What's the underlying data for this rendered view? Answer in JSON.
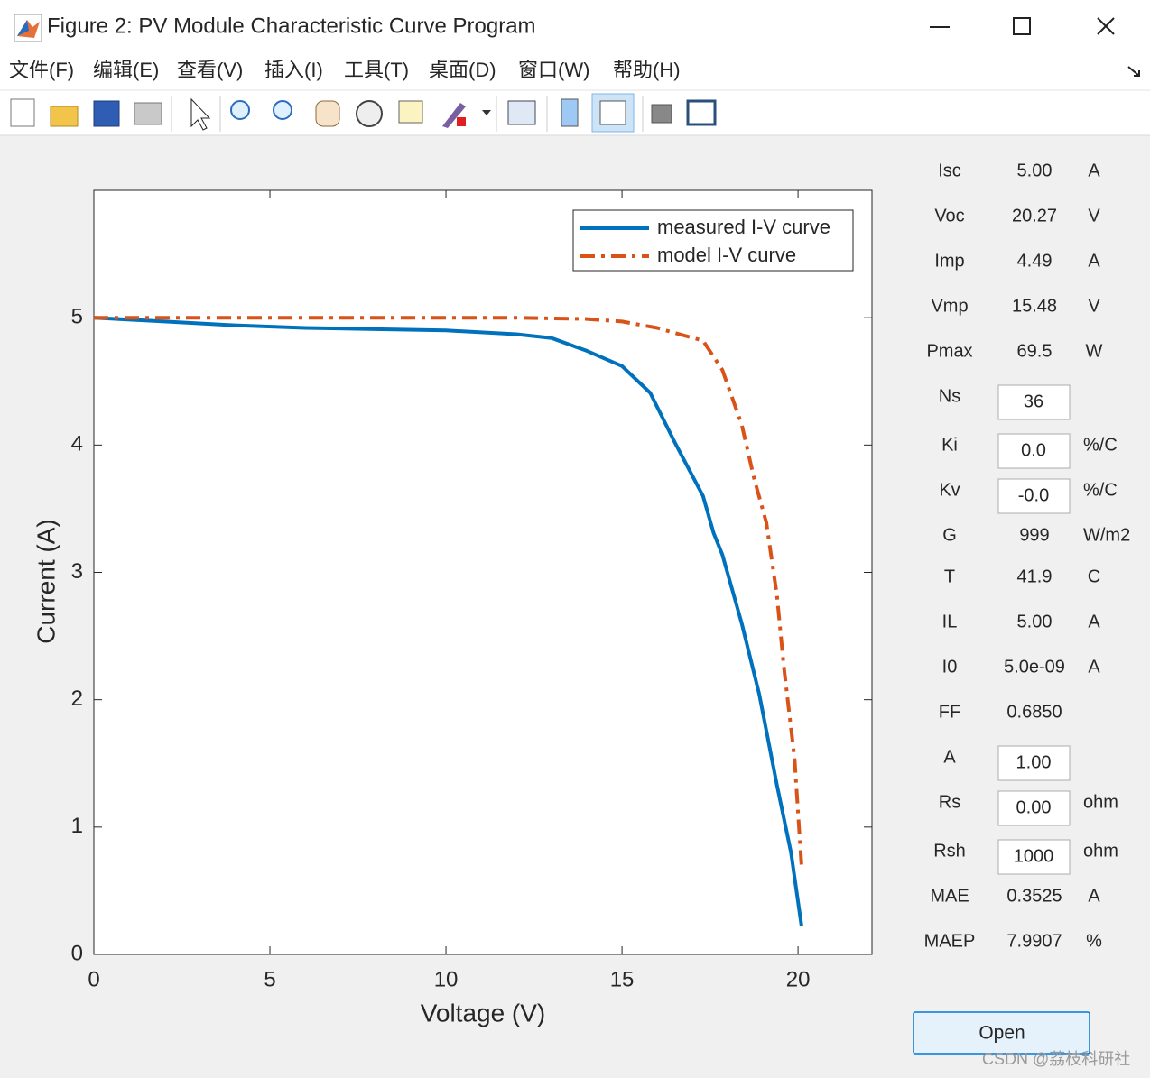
{
  "window": {
    "title": "Figure 2: PV Module Characteristic Curve Program"
  },
  "menu": [
    "文件(F)",
    "编辑(E)",
    "查看(V)",
    "插入(I)",
    "工具(T)",
    "桌面(D)",
    "窗口(W)",
    "帮助(H)"
  ],
  "chart_data": {
    "type": "line",
    "xlabel": "Voltage (V)",
    "ylabel": "Current (A)",
    "xlim": [
      0,
      22.1
    ],
    "ylim": [
      0,
      6
    ],
    "xticks": [
      0,
      5,
      10,
      15,
      20
    ],
    "yticks": [
      0,
      1,
      2,
      3,
      4,
      5
    ],
    "legend": "upper right",
    "series": [
      {
        "name": "measured I-V curve",
        "color": "#0072bd",
        "linestyle": "solid",
        "x": [
          0,
          2,
          4,
          6,
          8,
          10,
          12,
          13,
          14,
          15,
          15.8,
          16.5,
          17.3,
          17.6,
          17.85,
          18.4,
          18.9,
          19.4,
          19.8,
          20.1
        ],
        "values": [
          5.0,
          4.97,
          4.94,
          4.92,
          4.91,
          4.9,
          4.87,
          4.84,
          4.74,
          4.62,
          4.41,
          4.02,
          3.6,
          3.31,
          3.14,
          2.6,
          2.04,
          1.33,
          0.8,
          0.22
        ]
      },
      {
        "name": "model I-V curve",
        "color": "#d95319",
        "linestyle": "dashdot",
        "x": [
          0,
          4,
          8,
          12,
          14,
          15,
          16,
          16.5,
          17.3,
          17.85,
          18.4,
          18.75,
          19.1,
          19.4,
          19.6,
          19.9,
          20.1
        ],
        "values": [
          5.0,
          5.0,
          5.0,
          5.0,
          4.99,
          4.97,
          4.92,
          4.88,
          4.82,
          4.59,
          4.16,
          3.74,
          3.39,
          2.82,
          2.25,
          1.54,
          0.69
        ]
      }
    ]
  },
  "params": [
    {
      "label": "Isc",
      "value": "5.00",
      "unit": "A"
    },
    {
      "label": "Voc",
      "value": "20.27",
      "unit": "V"
    },
    {
      "label": "Imp",
      "value": "4.49",
      "unit": "A"
    },
    {
      "label": "Vmp",
      "value": "15.48",
      "unit": "V"
    },
    {
      "label": "Pmax",
      "value": "69.5",
      "unit": "W"
    },
    {
      "label": "Ns",
      "value": "36",
      "editable": true
    },
    {
      "label": "Ki",
      "value": "0.0",
      "unit": "%/C",
      "editable": true
    },
    {
      "label": "Kv",
      "value": "-0.0",
      "unit": "%/C",
      "editable": true
    },
    {
      "label": "G",
      "value": "999",
      "unit": "W/m2"
    },
    {
      "label": "T",
      "value": "41.9",
      "unit": "C"
    },
    {
      "label": "IL",
      "value": "5.00",
      "unit": "A"
    },
    {
      "label": "I0",
      "value": "5.0e-09",
      "unit": "A"
    },
    {
      "label": "FF",
      "value": "0.6850"
    },
    {
      "label": "A",
      "value": "1.00",
      "editable": true
    },
    {
      "label": "Rs",
      "value": "0.00",
      "unit": "ohm",
      "editable": true
    },
    {
      "label": "Rsh",
      "value": "1000",
      "unit": "ohm",
      "editable": true
    },
    {
      "label": "MAE",
      "value": "0.3525",
      "unit": "A"
    },
    {
      "label": "MAEP",
      "value": "7.9907",
      "unit": "%"
    }
  ],
  "button": "Open",
  "watermark": "CSDN @荔枝科研社"
}
